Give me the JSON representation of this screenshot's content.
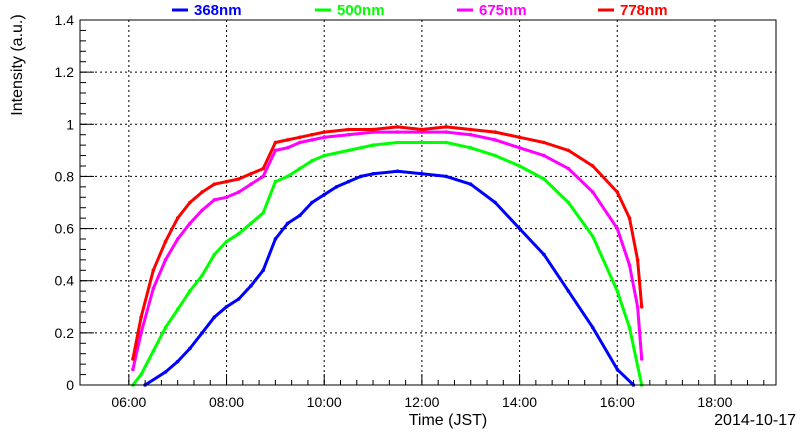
{
  "chart_data": {
    "type": "scatter",
    "xlabel": "Time (JST)",
    "ylabel": "Intensity (a.u.)",
    "date_label": "2014-10-17",
    "xlim": [
      "05:00",
      "19:15"
    ],
    "ylim": [
      0,
      1.4
    ],
    "grid": true,
    "legend_position": "top",
    "x_ticks": [
      "06:00",
      "08:00",
      "10:00",
      "12:00",
      "14:00",
      "16:00",
      "18:00"
    ],
    "y_ticks": [
      "0",
      "0.2",
      "0.4",
      "0.6",
      "0.8",
      "1",
      "1.2",
      "1.4"
    ],
    "series": [
      {
        "name": "368nm",
        "color": "#0000ff",
        "points": [
          [
            "06:20",
            0.0
          ],
          [
            "06:45",
            0.05
          ],
          [
            "07:00",
            0.09
          ],
          [
            "07:15",
            0.14
          ],
          [
            "07:30",
            0.2
          ],
          [
            "07:45",
            0.26
          ],
          [
            "08:00",
            0.3
          ],
          [
            "08:15",
            0.33
          ],
          [
            "08:30",
            0.38
          ],
          [
            "08:45",
            0.44
          ],
          [
            "09:00",
            0.56
          ],
          [
            "09:15",
            0.62
          ],
          [
            "09:30",
            0.65
          ],
          [
            "09:45",
            0.7
          ],
          [
            "10:00",
            0.73
          ],
          [
            "10:15",
            0.76
          ],
          [
            "10:30",
            0.78
          ],
          [
            "10:45",
            0.8
          ],
          [
            "11:00",
            0.81
          ],
          [
            "11:30",
            0.82
          ],
          [
            "12:00",
            0.81
          ],
          [
            "12:30",
            0.8
          ],
          [
            "13:00",
            0.77
          ],
          [
            "13:30",
            0.7
          ],
          [
            "14:00",
            0.6
          ],
          [
            "14:30",
            0.5
          ],
          [
            "15:00",
            0.36
          ],
          [
            "15:30",
            0.22
          ],
          [
            "16:00",
            0.06
          ],
          [
            "16:20",
            0.0
          ]
        ]
      },
      {
        "name": "500nm",
        "color": "#00ff00",
        "points": [
          [
            "06:05",
            0.0
          ],
          [
            "06:15",
            0.04
          ],
          [
            "06:30",
            0.13
          ],
          [
            "06:45",
            0.22
          ],
          [
            "07:00",
            0.29
          ],
          [
            "07:15",
            0.36
          ],
          [
            "07:30",
            0.42
          ],
          [
            "07:45",
            0.5
          ],
          [
            "08:00",
            0.55
          ],
          [
            "08:15",
            0.58
          ],
          [
            "08:30",
            0.62
          ],
          [
            "08:45",
            0.66
          ],
          [
            "09:00",
            0.78
          ],
          [
            "09:15",
            0.8
          ],
          [
            "09:30",
            0.83
          ],
          [
            "09:45",
            0.86
          ],
          [
            "10:00",
            0.88
          ],
          [
            "10:30",
            0.9
          ],
          [
            "11:00",
            0.92
          ],
          [
            "11:30",
            0.93
          ],
          [
            "12:00",
            0.93
          ],
          [
            "12:30",
            0.93
          ],
          [
            "13:00",
            0.91
          ],
          [
            "13:30",
            0.88
          ],
          [
            "14:00",
            0.84
          ],
          [
            "14:30",
            0.79
          ],
          [
            "15:00",
            0.7
          ],
          [
            "15:30",
            0.57
          ],
          [
            "16:00",
            0.36
          ],
          [
            "16:15",
            0.22
          ],
          [
            "16:30",
            0.0
          ]
        ]
      },
      {
        "name": "675nm",
        "color": "#ff00ff",
        "points": [
          [
            "06:05",
            0.06
          ],
          [
            "06:15",
            0.2
          ],
          [
            "06:30",
            0.37
          ],
          [
            "06:45",
            0.48
          ],
          [
            "07:00",
            0.56
          ],
          [
            "07:15",
            0.62
          ],
          [
            "07:30",
            0.67
          ],
          [
            "07:45",
            0.71
          ],
          [
            "08:00",
            0.72
          ],
          [
            "08:15",
            0.74
          ],
          [
            "08:30",
            0.77
          ],
          [
            "08:45",
            0.8
          ],
          [
            "09:00",
            0.9
          ],
          [
            "09:15",
            0.91
          ],
          [
            "09:30",
            0.93
          ],
          [
            "09:45",
            0.94
          ],
          [
            "10:00",
            0.95
          ],
          [
            "10:30",
            0.96
          ],
          [
            "11:00",
            0.97
          ],
          [
            "11:30",
            0.97
          ],
          [
            "12:00",
            0.97
          ],
          [
            "12:30",
            0.97
          ],
          [
            "13:00",
            0.96
          ],
          [
            "13:30",
            0.94
          ],
          [
            "14:00",
            0.91
          ],
          [
            "14:30",
            0.88
          ],
          [
            "15:00",
            0.83
          ],
          [
            "15:30",
            0.74
          ],
          [
            "16:00",
            0.6
          ],
          [
            "16:15",
            0.46
          ],
          [
            "16:25",
            0.3
          ],
          [
            "16:30",
            0.1
          ]
        ]
      },
      {
        "name": "778nm",
        "color": "#ff0000",
        "points": [
          [
            "06:05",
            0.1
          ],
          [
            "06:15",
            0.26
          ],
          [
            "06:30",
            0.44
          ],
          [
            "06:45",
            0.55
          ],
          [
            "07:00",
            0.64
          ],
          [
            "07:15",
            0.7
          ],
          [
            "07:30",
            0.74
          ],
          [
            "07:45",
            0.77
          ],
          [
            "08:00",
            0.78
          ],
          [
            "08:15",
            0.79
          ],
          [
            "08:30",
            0.81
          ],
          [
            "08:45",
            0.83
          ],
          [
            "09:00",
            0.93
          ],
          [
            "09:15",
            0.94
          ],
          [
            "09:30",
            0.95
          ],
          [
            "09:45",
            0.96
          ],
          [
            "10:00",
            0.97
          ],
          [
            "10:30",
            0.98
          ],
          [
            "11:00",
            0.98
          ],
          [
            "11:30",
            0.99
          ],
          [
            "12:00",
            0.98
          ],
          [
            "12:30",
            0.99
          ],
          [
            "13:00",
            0.98
          ],
          [
            "13:30",
            0.97
          ],
          [
            "14:00",
            0.95
          ],
          [
            "14:30",
            0.93
          ],
          [
            "15:00",
            0.9
          ],
          [
            "15:30",
            0.84
          ],
          [
            "16:00",
            0.74
          ],
          [
            "16:15",
            0.64
          ],
          [
            "16:25",
            0.48
          ],
          [
            "16:30",
            0.3
          ]
        ]
      }
    ]
  }
}
